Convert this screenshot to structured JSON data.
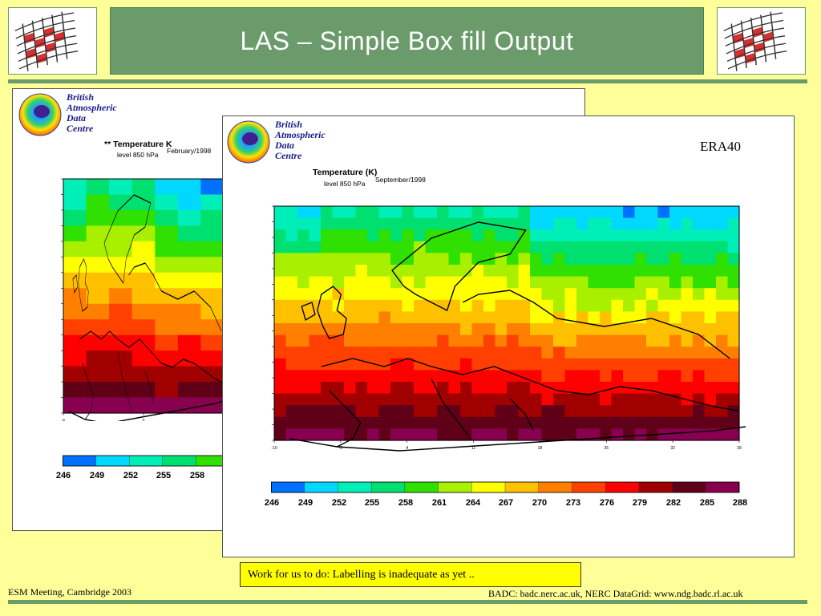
{
  "header": {
    "title": "LAS – Simple Box fill Output"
  },
  "colors": {
    "background": "#ffff99",
    "title_bar": "#6b9a6b",
    "note_box": "#ffff00"
  },
  "icons": {
    "corner_logo": "ndg-grid-logo-icon",
    "badc_logo": "globe-icon"
  },
  "plot_february": {
    "logo_lines": [
      "British",
      "Atmospheric",
      "Data",
      "Centre"
    ],
    "title": "** Temperature K",
    "level": "level 850 hPa",
    "date": "February/1998",
    "x_tick_labels": [
      "-6",
      "0",
      "6"
    ],
    "colorbar_labels": [
      "246",
      "249",
      "252",
      "255",
      "258"
    ]
  },
  "plot_september": {
    "logo_lines": [
      "British",
      "Atmospheric",
      "Data",
      "Centre"
    ],
    "title": "Temperature (K)",
    "level": "level 850 hPa",
    "date": "September/1998",
    "era_label": "ERA40",
    "x_tick_labels": [
      "-10",
      "-3",
      "4",
      "11",
      "18",
      "25",
      "32",
      "39"
    ],
    "colorbar_labels": [
      "246",
      "249",
      "252",
      "255",
      "258",
      "261",
      "264",
      "267",
      "270",
      "273",
      "276",
      "279",
      "282",
      "285",
      "288"
    ],
    "colorbar_colors": [
      "#0070ff",
      "#00d8ff",
      "#00eeb8",
      "#00e070",
      "#30e000",
      "#a8f000",
      "#ffff00",
      "#ffc000",
      "#ff8000",
      "#ff4000",
      "#ff0000",
      "#a00000",
      "#600018",
      "#880050",
      "#c800c8"
    ]
  },
  "note": {
    "text": "Work for us to do: Labelling is inadequate as yet .."
  },
  "footer": {
    "left": "ESM Meeting, Cambridge 2003",
    "right": "BADC: badc.nerc.ac.uk, NERC DataGrid: www.ndg.badc.rl.ac.uk"
  }
}
